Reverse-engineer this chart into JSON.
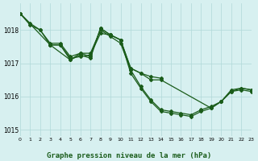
{
  "background_color": "#d7f0f0",
  "grid_color": "#b0d8d8",
  "line_color": "#1a5c1a",
  "title": "Graphe pression niveau de la mer (hPa)",
  "xlabel": "",
  "ylabel": "",
  "xlim": [
    0,
    23
  ],
  "ylim": [
    1014.8,
    1018.8
  ],
  "yticks": [
    1015,
    1016,
    1017,
    1018
  ],
  "xtick_labels": [
    "0",
    "1",
    "2",
    "3",
    "4",
    "5",
    "6",
    "7",
    "8",
    "9",
    "10",
    "11",
    "12",
    "13",
    "14",
    "15",
    "16",
    "17",
    "18",
    "19",
    "20",
    "21",
    "22",
    "23"
  ],
  "line1": {
    "x": [
      0,
      1,
      2,
      3,
      4,
      5,
      6,
      7,
      8,
      9,
      10,
      11,
      12,
      13,
      14,
      15,
      16,
      17,
      18,
      19,
      20,
      21,
      22,
      23
    ],
    "y": [
      1018.5,
      1018.2,
      1018.0,
      1017.6,
      1017.6,
      1017.2,
      1017.3,
      1017.3,
      1018.0,
      1017.8,
      1017.6,
      1016.8,
      1016.3,
      1015.9,
      1015.6,
      1015.55,
      1015.5,
      1015.45,
      1015.6,
      1015.7,
      1015.85,
      1016.2,
      1016.25,
      1016.2
    ]
  },
  "line2": {
    "x": [
      0,
      1,
      2,
      3,
      4,
      5,
      6,
      7,
      8,
      9,
      10,
      11,
      12,
      13,
      14,
      15,
      16,
      17,
      18,
      19,
      20,
      21,
      22,
      23
    ],
    "y": [
      1018.5,
      1018.15,
      1018.0,
      1017.55,
      1017.55,
      1017.15,
      1017.2,
      1017.25,
      1017.9,
      1017.85,
      1017.7,
      1016.7,
      1016.25,
      1015.85,
      1015.55,
      1015.5,
      1015.45,
      1015.4,
      1015.55,
      1015.65,
      1015.85,
      1016.15,
      1016.2,
      1016.15
    ]
  },
  "line3": {
    "x": [
      3,
      4,
      5,
      6,
      7,
      8,
      9,
      10,
      11,
      12,
      13,
      14
    ],
    "y": [
      1017.55,
      1017.55,
      1017.1,
      1017.3,
      1017.2,
      1018.05,
      1017.85,
      1017.7,
      1016.85,
      1016.7,
      1016.6,
      1016.55
    ]
  },
  "line4": {
    "x": [
      0,
      3,
      5,
      6,
      7,
      8,
      9,
      10,
      11,
      12,
      13,
      14,
      19,
      20,
      21,
      22,
      23
    ],
    "y": [
      1018.5,
      1017.55,
      1017.1,
      1017.25,
      1017.15,
      1018.05,
      1017.85,
      1017.7,
      1016.85,
      1016.7,
      1016.5,
      1016.5,
      1015.65,
      1015.85,
      1016.15,
      1016.25,
      1016.2
    ]
  }
}
